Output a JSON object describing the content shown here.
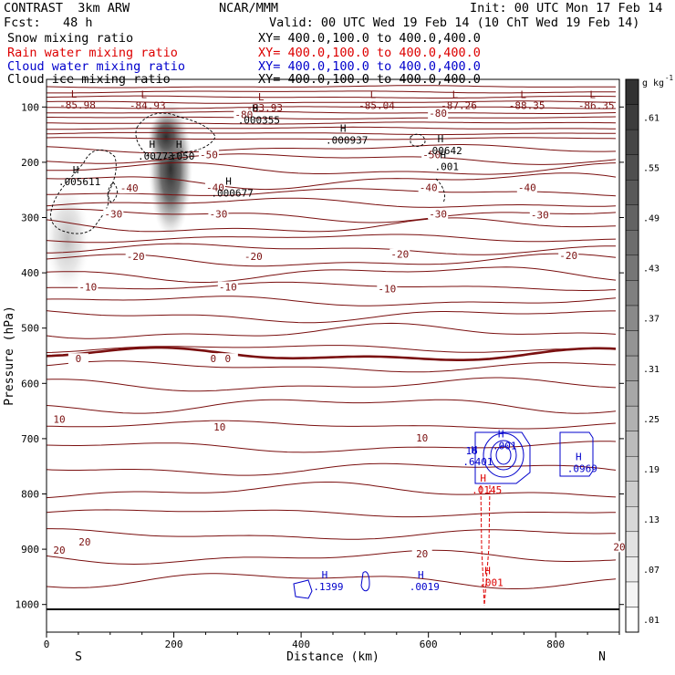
{
  "header": {
    "model": "CONTRAST  3km ARW",
    "org": "NCAR/MMM",
    "init": "Init: 00 UTC Mon 17 Feb 14",
    "fcst": "Fcst:   48 h",
    "valid": "Valid: 00 UTC Wed 19 Feb 14 (10 ChT Wed 19 Feb 14)"
  },
  "legend": [
    {
      "label": "Snow mixing ratio",
      "xy": "XY= 400.0,100.0 to 400.0,400.0",
      "color": "#000000"
    },
    {
      "label": "Rain water mixing ratio",
      "xy": "XY= 400.0,100.0 to 400.0,400.0",
      "color": "#dd0000"
    },
    {
      "label": "Cloud water mixing ratio",
      "xy": "XY= 400.0,100.0 to 400.0,400.0",
      "color": "#0000cc"
    },
    {
      "label": "Cloud ice mixing ratio",
      "xy": "XY= 400.0,100.0 to 400.0,400.0",
      "color": "#000000"
    }
  ],
  "chart_data": {
    "type": "cross-section",
    "xlabel": "Distance (km)",
    "ylabel": "Pressure (hPa)",
    "xlim": [
      0,
      900
    ],
    "ylim": [
      1050,
      50
    ],
    "xticks": [
      0,
      200,
      400,
      600,
      800
    ],
    "yticks": [
      100,
      200,
      300,
      400,
      500,
      600,
      700,
      800,
      900,
      1000
    ],
    "end_labels": {
      "left": "S",
      "right": "N"
    },
    "colorbar": {
      "unit": "g kg",
      "unit_exp": "-1",
      "labels": [
        ".61",
        ".55",
        ".49",
        ".43",
        ".37",
        ".31",
        ".25",
        ".19",
        ".13",
        ".07",
        ".01"
      ],
      "levels": [
        0.01,
        0.04,
        0.07,
        0.1,
        0.13,
        0.16,
        0.19,
        0.22,
        0.25,
        0.28,
        0.31,
        0.34,
        0.37,
        0.4,
        0.43,
        0.46,
        0.49,
        0.52,
        0.55,
        0.58,
        0.61,
        0.64
      ]
    },
    "temperature_labels": [
      {
        "x": 310,
        "p": 115,
        "text": "-80"
      },
      {
        "x": 615,
        "p": 113,
        "text": "-80"
      },
      {
        "x": 255,
        "p": 188,
        "text": "-50"
      },
      {
        "x": 605,
        "p": 188,
        "text": "-50"
      },
      {
        "x": 130,
        "p": 248,
        "text": "-40"
      },
      {
        "x": 265,
        "p": 247,
        "text": "-40"
      },
      {
        "x": 600,
        "p": 247,
        "text": "-40"
      },
      {
        "x": 755,
        "p": 247,
        "text": "-40"
      },
      {
        "x": 105,
        "p": 295,
        "text": "-30"
      },
      {
        "x": 270,
        "p": 295,
        "text": "-30"
      },
      {
        "x": 615,
        "p": 295,
        "text": "-30"
      },
      {
        "x": 775,
        "p": 297,
        "text": "-30"
      },
      {
        "x": 140,
        "p": 372,
        "text": "-20"
      },
      {
        "x": 325,
        "p": 372,
        "text": "-20"
      },
      {
        "x": 555,
        "p": 368,
        "text": "-20"
      },
      {
        "x": 820,
        "p": 370,
        "text": "-20"
      },
      {
        "x": 65,
        "p": 427,
        "text": "-10"
      },
      {
        "x": 285,
        "p": 427,
        "text": "-10"
      },
      {
        "x": 535,
        "p": 430,
        "text": "-10"
      },
      {
        "x": 50,
        "p": 557,
        "text": "0"
      },
      {
        "x": 262,
        "p": 557,
        "text": "0"
      },
      {
        "x": 285,
        "p": 557,
        "text": "0"
      },
      {
        "x": 20,
        "p": 666,
        "text": "10"
      },
      {
        "x": 272,
        "p": 680,
        "text": "10"
      },
      {
        "x": 590,
        "p": 700,
        "text": "10"
      },
      {
        "x": 60,
        "p": 888,
        "text": "20"
      },
      {
        "x": 20,
        "p": 903,
        "text": "20"
      },
      {
        "x": 590,
        "p": 910,
        "text": "20"
      },
      {
        "x": 900,
        "p": 897,
        "text": "20"
      }
    ],
    "low_labels": [
      {
        "x": 43,
        "p": 83,
        "value": "-85.98"
      },
      {
        "x": 153,
        "p": 84,
        "value": "-84.93"
      },
      {
        "x": 337,
        "p": 88,
        "value": "-83.93"
      },
      {
        "x": 513,
        "p": 84,
        "value": "-85.04"
      },
      {
        "x": 642,
        "p": 84,
        "value": "-87.26"
      },
      {
        "x": 749,
        "p": 84,
        "value": "-88.35"
      },
      {
        "x": 858,
        "p": 84,
        "value": "-86.35"
      }
    ],
    "high_labels": [
      {
        "x": 328,
        "p": 127,
        "value": ".000355",
        "color": "#000000"
      },
      {
        "x": 466,
        "p": 163,
        "value": ".000937",
        "color": "#000000"
      },
      {
        "x": 619,
        "p": 182,
        "value": ".00642",
        "color": "#000000"
      },
      {
        "x": 623,
        "p": 211,
        "value": ".001",
        "color": "#000000"
      },
      {
        "x": 166,
        "p": 192,
        "value": ".00773",
        "color": "#000000"
      },
      {
        "x": 208,
        "p": 192,
        "value": ".050",
        "color": "#000000"
      },
      {
        "x": 46,
        "p": 238,
        "value": ".005611",
        "color": "#000000"
      },
      {
        "x": 286,
        "p": 259,
        "value": ".000677",
        "color": "#000000"
      },
      {
        "x": 714,
        "p": 716,
        "value": ".001",
        "color": "#0000cc"
      },
      {
        "x": 672,
        "p": 745,
        "value": ".6401",
        "color": "#0000cc"
      },
      {
        "x": 836,
        "p": 757,
        "value": ".0969",
        "color": "#0000cc"
      },
      {
        "x": 686,
        "p": 796,
        "value": ".0145",
        "color": "#dd0000"
      },
      {
        "x": 437,
        "p": 971,
        "value": ".1399",
        "color": "#0000cc"
      },
      {
        "x": 588,
        "p": 971,
        "value": ".0019",
        "color": "#0000cc"
      },
      {
        "x": 693,
        "p": 963,
        "value": ".001",
        "color": "#dd0000"
      }
    ],
    "extra_labels": [
      {
        "x": 668,
        "p": 722,
        "text": "16",
        "color": "#0000cc"
      }
    ]
  }
}
